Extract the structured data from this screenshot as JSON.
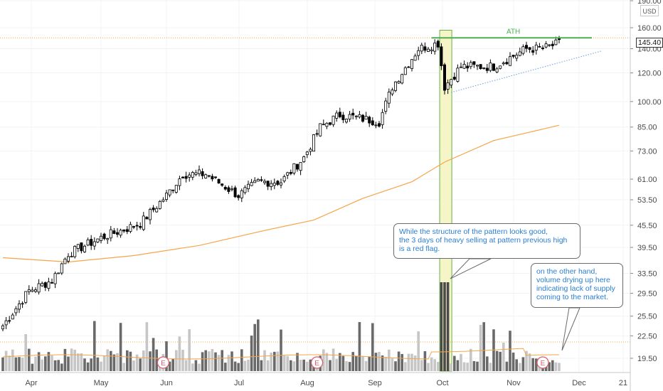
{
  "chart_data": {
    "type": "candlestick",
    "title": "",
    "y_scale": "log",
    "currency": "USD",
    "y_ticks": [
      19.5,
      22.5,
      25.5,
      29.5,
      33.5,
      39.5,
      45.5,
      53.5,
      61.0,
      73.0,
      85.0,
      100.0,
      120.0,
      140.0,
      160.0,
      190.0
    ],
    "y_tick_labels": [
      "19.50",
      "22.50",
      "25.50",
      "29.50",
      "33.50",
      "39.50",
      "45.50",
      "53.50",
      "61.00",
      "73.00",
      "85.00",
      "100.00",
      "120.00",
      "140.00",
      "160.00",
      "190.00"
    ],
    "x_tick_labels": [
      "Apr",
      "May",
      "Jun",
      "Jul",
      "Aug",
      "Sep",
      "Oct",
      "Nov",
      "Dec",
      "21"
    ],
    "last_price": 145.4,
    "last_price_label": "145.40",
    "ath_level": 150,
    "ath_label": "ATH",
    "earnings_marker_label": "E",
    "close_anchors": [
      {
        "bar": 0,
        "close": 24
      },
      {
        "bar": 8,
        "close": 30
      },
      {
        "bar": 15,
        "close": 32
      },
      {
        "bar": 20,
        "close": 38
      },
      {
        "bar": 30,
        "close": 42
      },
      {
        "bar": 42,
        "close": 46
      },
      {
        "bar": 50,
        "close": 55
      },
      {
        "bar": 55,
        "close": 63
      },
      {
        "bar": 62,
        "close": 63
      },
      {
        "bar": 72,
        "close": 55
      },
      {
        "bar": 78,
        "close": 60
      },
      {
        "bar": 85,
        "close": 60
      },
      {
        "bar": 92,
        "close": 70
      },
      {
        "bar": 97,
        "close": 85
      },
      {
        "bar": 103,
        "close": 92
      },
      {
        "bar": 115,
        "close": 88
      },
      {
        "bar": 119,
        "close": 110
      },
      {
        "bar": 127,
        "close": 140
      },
      {
        "bar": 133,
        "close": 145
      },
      {
        "bar": 135,
        "close": 110
      },
      {
        "bar": 140,
        "close": 125
      },
      {
        "bar": 150,
        "close": 125
      },
      {
        "bar": 160,
        "close": 140
      },
      {
        "bar": 165,
        "close": 140
      },
      {
        "bar": 170,
        "close": 145
      }
    ],
    "moving_average": [
      {
        "bar": 0,
        "value": 37
      },
      {
        "bar": 20,
        "value": 36
      },
      {
        "bar": 40,
        "value": 37.5
      },
      {
        "bar": 60,
        "value": 40
      },
      {
        "bar": 80,
        "value": 44
      },
      {
        "bar": 95,
        "value": 47
      },
      {
        "bar": 110,
        "value": 54
      },
      {
        "bar": 125,
        "value": 60
      },
      {
        "bar": 135,
        "value": 68
      },
      {
        "bar": 150,
        "value": 78
      },
      {
        "bar": 170,
        "value": 86
      }
    ],
    "volume_pattern_note": "relative volumes, heavy on 3 days after ATH, drying up late Nov"
  },
  "annotations": {
    "note1": "While the structure of the pattern looks good,\nthe 3 days of heavy selling at pattern previous high\nis a red flag.",
    "note2": "on the other hand,\nvolume drying up here\nindicating lack of supply\ncoming to the market."
  },
  "colors": {
    "up": "#ffffff",
    "down": "#000000",
    "ma": "#f5a54a",
    "ath": "#4caf50",
    "trend": "#64a0e0",
    "highlight_fill": "#f5f5c8",
    "highlight_stroke": "#6ab04c",
    "note_text": "#2a7fd4"
  }
}
